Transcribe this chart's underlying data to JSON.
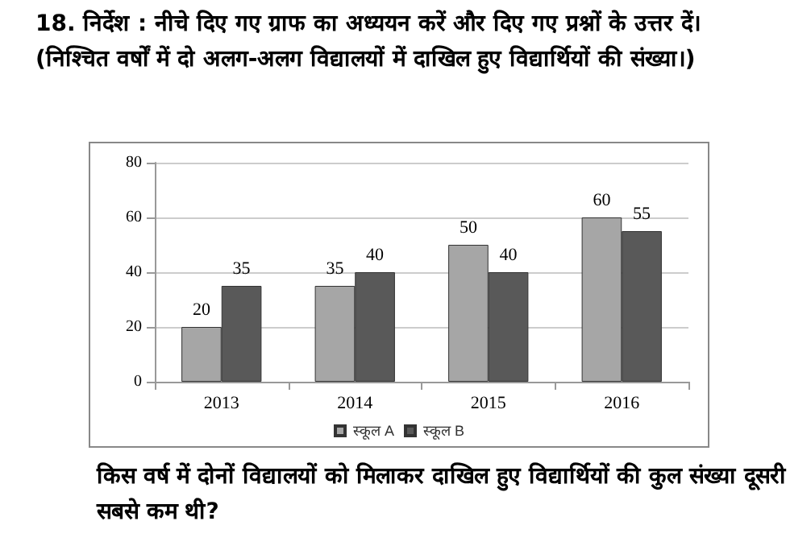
{
  "chart_data": {
    "type": "bar",
    "title": "18. निर्देश : नीचे दिए गए ग्राफ का अध्ययन करें और दिए गए प्रश्नों के उत्तर दें। (निश्चित वर्षों में दो अलग-अलग विद्यालयों में दाखिल हुए विद्यार्थियों की संख्या।)",
    "categories": [
      "2013",
      "2014",
      "2015",
      "2016"
    ],
    "series": [
      {
        "name": "स्कूल A",
        "color": "#a6a6a6",
        "values": [
          20,
          35,
          50,
          60
        ]
      },
      {
        "name": "स्कूल B",
        "color": "#595959",
        "values": [
          35,
          40,
          40,
          55
        ]
      }
    ],
    "ylim": [
      0,
      80
    ],
    "yticks": [
      0,
      20,
      40,
      60,
      80
    ],
    "grid": "y",
    "legend": "bottom",
    "data_labels": true,
    "annotations": [
      "किस वर्ष में दोनों विद्यालयों को मिलाकर दाखिल हुए विद्यार्थियों की कुल संख्या दूसरी सबसे कम थी?"
    ]
  }
}
